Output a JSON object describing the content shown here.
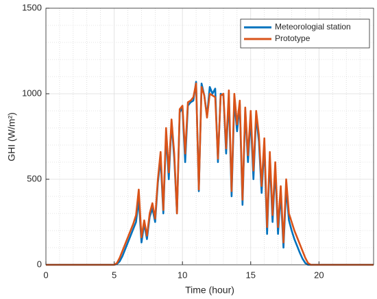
{
  "chart_data": {
    "type": "line",
    "xlabel": "Time (hour)",
    "ylabel": "GHI (W/m²)",
    "x": [
      0,
      5,
      5.2,
      5.4,
      5.6,
      5.8,
      6,
      6.2,
      6.4,
      6.6,
      6.8,
      7,
      7.2,
      7.4,
      7.6,
      7.8,
      8,
      8.2,
      8.4,
      8.6,
      8.8,
      9,
      9.2,
      9.4,
      9.6,
      9.8,
      10,
      10.2,
      10.4,
      10.6,
      10.8,
      11,
      11.2,
      11.4,
      11.6,
      11.8,
      12,
      12.2,
      12.4,
      12.6,
      12.8,
      13,
      13.2,
      13.4,
      13.6,
      13.8,
      14,
      14.2,
      14.4,
      14.6,
      14.8,
      15,
      15.2,
      15.4,
      15.6,
      15.8,
      16,
      16.2,
      16.4,
      16.6,
      16.8,
      17,
      17.2,
      17.4,
      17.6,
      17.8,
      18,
      18.2,
      18.4,
      18.6,
      18.8,
      19,
      19.2,
      19.4,
      19.6,
      24
    ],
    "series": [
      {
        "name": "Meteorologial station",
        "color": "#0072BD",
        "values": [
          0,
          0,
          5,
          20,
          50,
          90,
          130,
          170,
          210,
          250,
          380,
          130,
          240,
          150,
          280,
          330,
          250,
          480,
          620,
          300,
          760,
          500,
          830,
          620,
          300,
          890,
          920,
          600,
          930,
          950,
          960,
          1070,
          430,
          1060,
          990,
          870,
          1040,
          1000,
          1030,
          600,
          1000,
          990,
          650,
          980,
          400,
          960,
          780,
          940,
          350,
          900,
          600,
          860,
          500,
          870,
          720,
          420,
          700,
          180,
          620,
          250,
          560,
          180,
          420,
          100,
          450,
          260,
          200,
          150,
          110,
          70,
          35,
          10,
          0,
          0,
          0,
          0
        ]
      },
      {
        "name": "Prototype",
        "color": "#D95319",
        "values": [
          0,
          0,
          10,
          40,
          80,
          120,
          160,
          200,
          240,
          290,
          440,
          160,
          260,
          170,
          300,
          360,
          270,
          500,
          660,
          320,
          800,
          540,
          850,
          650,
          300,
          910,
          930,
          650,
          950,
          960,
          980,
          1060,
          440,
          1040,
          990,
          860,
          1000,
          990,
          980,
          620,
          990,
          1000,
          680,
          1020,
          430,
          1000,
          820,
          960,
          380,
          920,
          640,
          900,
          550,
          900,
          760,
          460,
          740,
          220,
          660,
          290,
          600,
          220,
          460,
          130,
          500,
          300,
          250,
          200,
          160,
          120,
          80,
          40,
          10,
          0,
          0,
          0
        ]
      }
    ],
    "xlim": [
      0,
      24
    ],
    "xticks": [
      0,
      5,
      10,
      15,
      20
    ],
    "ylim": [
      0,
      1500
    ],
    "yticks": [
      0,
      500,
      1000,
      1500
    ],
    "xminorticks": [
      1,
      2,
      3,
      4,
      6,
      7,
      8,
      9,
      11,
      12,
      13,
      14,
      16,
      17,
      18,
      19,
      21,
      22,
      23
    ],
    "yminorticks": [
      100,
      200,
      300,
      400,
      600,
      700,
      800,
      900,
      1100,
      1200,
      1300,
      1400
    ],
    "grid": true,
    "minor_grid": true,
    "legend": "northeast"
  }
}
